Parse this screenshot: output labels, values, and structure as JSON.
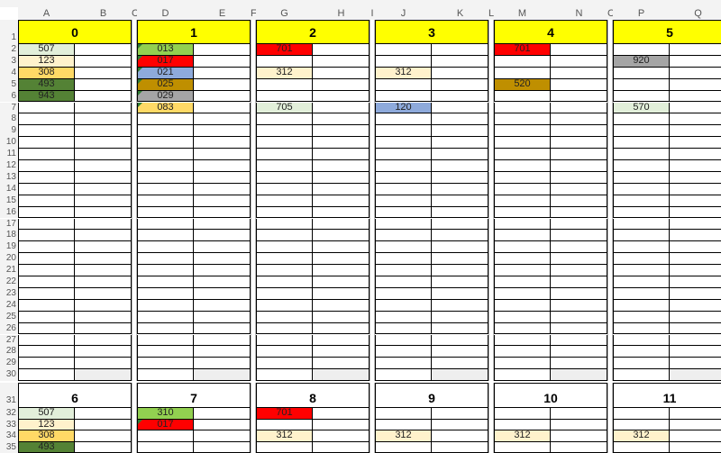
{
  "columns": [
    "A",
    "B",
    "C",
    "D",
    "E",
    "F",
    "G",
    "H",
    "I",
    "J",
    "K",
    "L",
    "M",
    "N",
    "C",
    "P",
    "Q"
  ],
  "colors": {
    "light_green": "#e2efda",
    "light_yellow": "#fff2cc",
    "gold": "#ffd966",
    "dark_green": "#548235",
    "green": "#92d050",
    "red": "#ff0000",
    "blue": "#8eaadb",
    "brown": "#bf8f00",
    "grey": "#a5a5a5",
    "header_yellow": "#ffff00"
  },
  "blocks": [
    {
      "title": "0",
      "header_fill": "#ffff00",
      "cells": [
        {
          "row": 2,
          "value": "507",
          "fill": "#e2efda"
        },
        {
          "row": 3,
          "value": "123",
          "fill": "#fff2cc"
        },
        {
          "row": 4,
          "value": "308",
          "fill": "#ffd966"
        },
        {
          "row": 5,
          "value": "493",
          "fill": "#548235"
        },
        {
          "row": 6,
          "value": "943",
          "fill": "#548235"
        }
      ]
    },
    {
      "title": "1",
      "header_fill": "#ffff00",
      "cells": [
        {
          "row": 2,
          "value": "013",
          "fill": "#92d050",
          "flag": true
        },
        {
          "row": 3,
          "value": "017",
          "fill": "#ff0000",
          "flag": true
        },
        {
          "row": 4,
          "value": "021",
          "fill": "#8eaadb",
          "flag": true
        },
        {
          "row": 5,
          "value": "025",
          "fill": "#bf8f00",
          "flag": true
        },
        {
          "row": 6,
          "value": "029",
          "fill": "#a5a5a5",
          "flag": true
        },
        {
          "row": 7,
          "value": "083",
          "fill": "#ffd966",
          "flag": true
        }
      ]
    },
    {
      "title": "2",
      "header_fill": "#ffff00",
      "cells": [
        {
          "row": 2,
          "value": "701",
          "fill": "#ff0000"
        },
        {
          "row": 4,
          "value": "312",
          "fill": "#fff2cc"
        },
        {
          "row": 7,
          "value": "705",
          "fill": "#e2efda"
        }
      ]
    },
    {
      "title": "3",
      "header_fill": "#ffff00",
      "cells": [
        {
          "row": 4,
          "value": "312",
          "fill": "#fff2cc"
        },
        {
          "row": 7,
          "value": "120",
          "fill": "#8eaadb"
        }
      ]
    },
    {
      "title": "4",
      "header_fill": "#ffff00",
      "cells": [
        {
          "row": 2,
          "value": "701",
          "fill": "#ff0000"
        },
        {
          "row": 5,
          "value": "520",
          "fill": "#bf8f00"
        }
      ]
    },
    {
      "title": "5",
      "header_fill": "#ffff00",
      "cells": [
        {
          "row": 3,
          "value": "920",
          "fill": "#a5a5a5"
        },
        {
          "row": 7,
          "value": "570",
          "fill": "#e2efda"
        }
      ]
    }
  ],
  "blocks2": [
    {
      "title": "6",
      "cells": [
        {
          "row": 32,
          "value": "507",
          "fill": "#e2efda"
        },
        {
          "row": 33,
          "value": "123",
          "fill": "#fff2cc"
        },
        {
          "row": 34,
          "value": "308",
          "fill": "#ffd966"
        },
        {
          "row": 35,
          "value": "493",
          "fill": "#548235"
        }
      ]
    },
    {
      "title": "7",
      "cells": [
        {
          "row": 32,
          "value": "310",
          "fill": "#92d050"
        },
        {
          "row": 33,
          "value": "017",
          "fill": "#ff0000",
          "flag": true
        }
      ]
    },
    {
      "title": "8",
      "cells": [
        {
          "row": 32,
          "value": "701",
          "fill": "#ff0000"
        },
        {
          "row": 34,
          "value": "312",
          "fill": "#fff2cc"
        }
      ]
    },
    {
      "title": "9",
      "cells": [
        {
          "row": 34,
          "value": "312",
          "fill": "#fff2cc"
        }
      ]
    },
    {
      "title": "10",
      "cells": [
        {
          "row": 34,
          "value": "312",
          "fill": "#fff2cc"
        }
      ]
    },
    {
      "title": "11",
      "cells": [
        {
          "row": 34,
          "value": "312",
          "fill": "#fff2cc"
        }
      ]
    }
  ]
}
